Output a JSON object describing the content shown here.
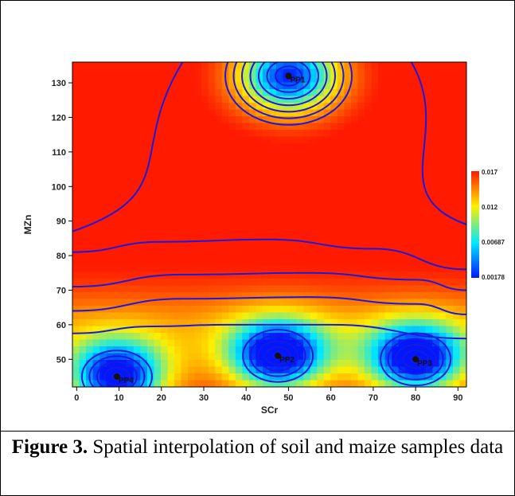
{
  "caption": {
    "label": "Figure 3.",
    "text": " Spatial interpolation of soil and maize samples data"
  },
  "chart_data": {
    "type": "heatmap",
    "title": "",
    "xlabel": "SCr",
    "ylabel": "MZn",
    "xlim": [
      -1,
      92
    ],
    "ylim": [
      42,
      136
    ],
    "x_ticks": [
      0,
      10,
      20,
      30,
      40,
      50,
      60,
      70,
      80,
      90
    ],
    "y_ticks": [
      50,
      60,
      70,
      80,
      90,
      100,
      110,
      120,
      130
    ],
    "colorbar": {
      "ticks": [
        "0.017",
        "0.012",
        "0.00687",
        "0.00178"
      ],
      "colors": [
        "#ff1a00",
        "#ffee00",
        "#00e8ff",
        "#0018ff"
      ]
    },
    "points": [
      {
        "label": "PP1",
        "x": 50,
        "y": 132
      },
      {
        "label": "PP2",
        "x": 47.5,
        "y": 51
      },
      {
        "label": "PP3",
        "x": 80,
        "y": 50
      },
      {
        "label": "PP4",
        "x": 9.5,
        "y": 45
      }
    ],
    "contour_color": "#1a1adc",
    "grid": false,
    "legend": "right"
  }
}
